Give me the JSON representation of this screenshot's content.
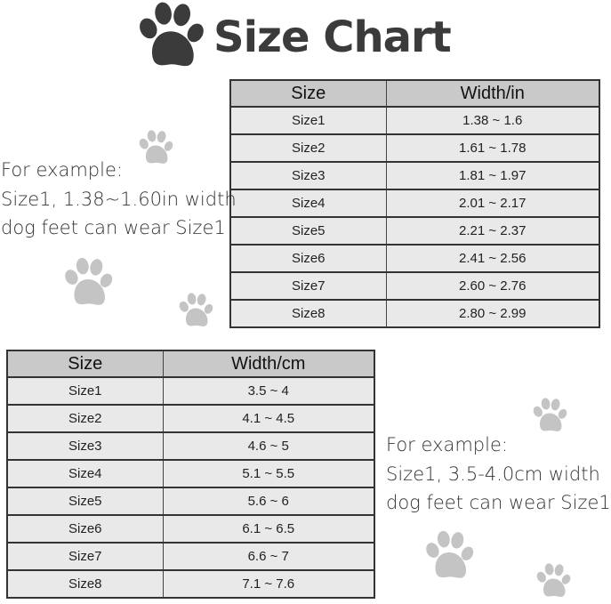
{
  "title": "Size Chart",
  "colors": {
    "title": "#3b3b3b",
    "big_paw": "#3b3b3b",
    "small_paw": "#c4c4c4",
    "header_bg": "#c9c9c9",
    "row_bg": "#e9e9e9"
  },
  "icons": [
    "paw-print-icon"
  ],
  "inch_table": {
    "headers": [
      "Size",
      "Width/in"
    ],
    "rows": [
      [
        "Size1",
        "1.38 ~ 1.6"
      ],
      [
        "Size2",
        "1.61 ~ 1.78"
      ],
      [
        "Size3",
        "1.81 ~ 1.97"
      ],
      [
        "Size4",
        "2.01 ~ 2.17"
      ],
      [
        "Size5",
        "2.21 ~ 2.37"
      ],
      [
        "Size6",
        "2.41 ~ 2.56"
      ],
      [
        "Size7",
        "2.60 ~ 2.76"
      ],
      [
        "Size8",
        "2.80 ~ 2.99"
      ]
    ]
  },
  "cm_table": {
    "headers": [
      "Size",
      "Width/cm"
    ],
    "rows": [
      [
        "Size1",
        "3.5 ~ 4"
      ],
      [
        "Size2",
        "4.1 ~ 4.5"
      ],
      [
        "Size3",
        "4.6 ~ 5"
      ],
      [
        "Size4",
        "5.1 ~ 5.5"
      ],
      [
        "Size5",
        "5.6 ~ 6"
      ],
      [
        "Size6",
        "6.1 ~ 6.5"
      ],
      [
        "Size7",
        "6.6 ~ 7"
      ],
      [
        "Size8",
        "7.1 ~ 7.6"
      ]
    ]
  },
  "inch_note": [
    "For example:",
    "Size1, 1.38~1.60in width",
    "dog feet can wear Size1"
  ],
  "cm_note": [
    "For example:",
    "Size1, 3.5-4.0cm width",
    "dog feet can wear Size1"
  ]
}
